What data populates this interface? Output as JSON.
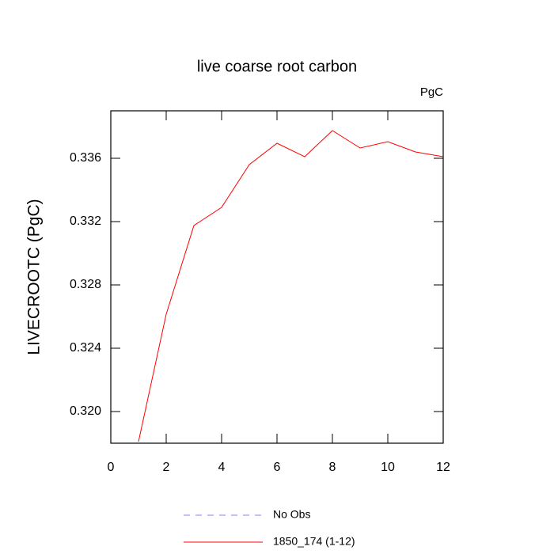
{
  "chart_data": {
    "type": "line",
    "title": "live coarse root carbon",
    "units": "PgC",
    "y_label": "LIVECROOTC  (PgC)",
    "x": [
      1,
      2,
      3,
      4,
      5,
      6,
      7,
      8,
      9,
      10,
      11,
      12
    ],
    "series": [
      {
        "name": "No Obs",
        "color": "#8080ff",
        "dashed": true,
        "values": [
          null,
          null,
          null,
          null,
          null,
          null,
          null,
          null,
          null,
          null,
          null,
          null
        ]
      },
      {
        "name": "1850_174 (1-12)",
        "color": "#ff0000",
        "dashed": false,
        "values": [
          0.3181,
          0.32615,
          0.33175,
          0.3329,
          0.3356,
          0.33695,
          0.3361,
          0.33775,
          0.33665,
          0.33705,
          0.3364,
          0.3361
        ]
      }
    ],
    "xlim": [
      0,
      12
    ],
    "xticks": [
      0,
      2,
      4,
      6,
      8,
      10,
      12
    ],
    "ylim": [
      0.318,
      0.339
    ],
    "yticks": [
      {
        "value": 0.32,
        "label": "0.320"
      },
      0.324,
      0.328,
      0.332,
      0.336
    ]
  }
}
